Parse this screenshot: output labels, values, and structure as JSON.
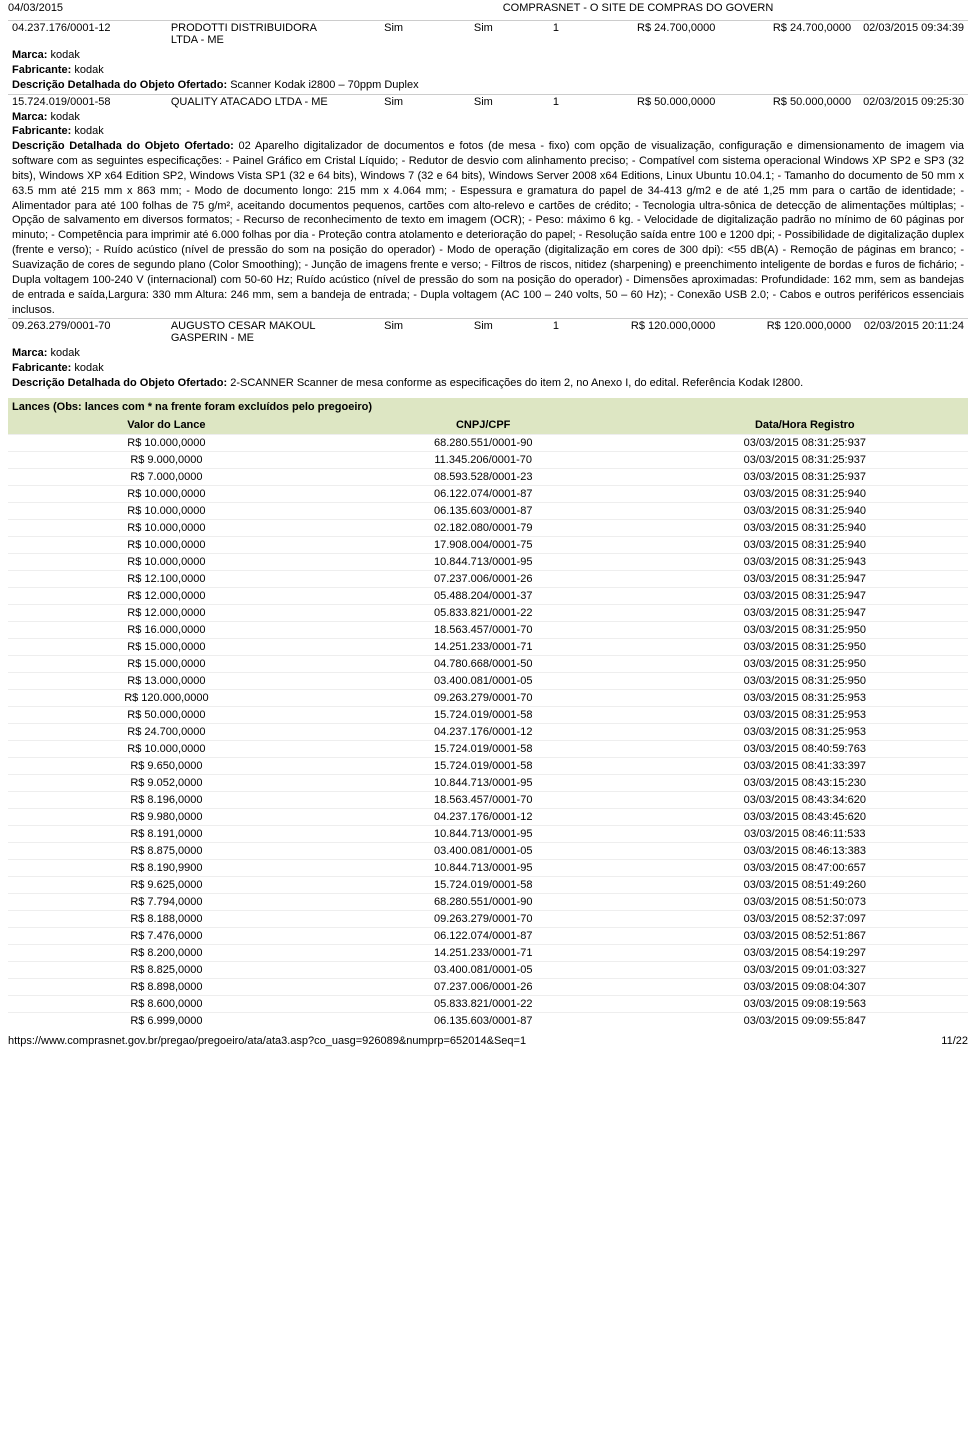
{
  "header": {
    "date": "04/03/2015",
    "title": "COMPRASNET - O SITE DE COMPRAS DO GOVERN"
  },
  "vendors": [
    {
      "cnpj": "04.237.176/0001-12",
      "nome": "PRODOTTI DISTRIBUIDORA LTDA - ME",
      "col1": "Sim",
      "col2": "Sim",
      "qtd": "1",
      "v1": "R$ 24.700,0000",
      "v2": "R$ 24.700,0000",
      "data": "02/03/2015 09:34:39",
      "marca_lbl": "Marca: ",
      "marca": "kodak",
      "fab_lbl": "Fabricante: ",
      "fab": "kodak",
      "desc_lbl": "Descrição Detalhada do Objeto Ofertado: ",
      "desc": "Scanner Kodak i2800 – 70ppm Duplex"
    },
    {
      "cnpj": "15.724.019/0001-58",
      "nome": "QUALITY ATACADO LTDA - ME",
      "col1": "Sim",
      "col2": "Sim",
      "qtd": "1",
      "v1": "R$ 50.000,0000",
      "v2": "R$ 50.000,0000",
      "data": "02/03/2015 09:25:30",
      "marca_lbl": "Marca: ",
      "marca": "kodak",
      "fab_lbl": "Fabricante: ",
      "fab": "kodak",
      "desc_lbl": "Descrição Detalhada do Objeto Ofertado: ",
      "desc": "02 Aparelho digitalizador de documentos e fotos (de mesa - fixo) com opção de visualização, configuração e dimensionamento de imagem via software com as seguintes especificações: - Painel Gráfico em Cristal Líquido; - Redutor de desvio com alinhamento preciso; - Compatível com sistema operacional Windows XP SP2 e SP3 (32 bits), Windows XP x64 Edition SP2, Windows Vista SP1 (32 e 64 bits), Windows 7 (32 e 64 bits), Windows Server 2008 x64 Editions, Linux Ubuntu 10.04.1; - Tamanho do documento de 50 mm x 63.5 mm até 215 mm x 863 mm; - Modo de documento longo: 215 mm x 4.064 mm; - Espessura e gramatura do papel de 34-413 g/m2 e de até 1,25 mm para o cartão de identidade; - Alimentador para até 100 folhas de 75 g/m², aceitando documentos pequenos, cartões com alto-relevo e cartões de crédito; - Tecnologia ultra-sônica de detecção de alimentações múltiplas; - Opção de salvamento em diversos formatos; - Recurso de reconhecimento de texto em imagem (OCR); - Peso: máximo 6 kg. - Velocidade de digitalização padrão no mínimo de 60 páginas por minuto; - Competência para imprimir até 6.000 folhas por dia - Proteção contra atolamento e deterioração do papel; - Resolução saída entre 100 e 1200 dpi; - Possibilidade de digitalização duplex (frente e verso); - Ruído acústico (nível de pressão do som na posição do operador) - Modo de operação (digitalização em cores de 300 dpi): <55 dB(A) - Remoção de páginas em branco; - Suavização de cores de segundo plano (Color Smoothing); - Junção de imagens frente e verso; - Filtros de riscos, nitidez (sharpening) e preenchimento inteligente de bordas e furos de fichário; - Dupla voltagem 100-240 V (internacional) com 50-60 Hz; Ruído acústico (nível de pressão do som na posição do operador) - Dimensões aproximadas: Profundidade: 162 mm, sem as bandejas de entrada e saída,Largura: 330 mm Altura: 246 mm, sem a bandeja de entrada; - Dupla voltagem (AC 100 – 240 volts, 50 – 60 Hz); - Conexão USB 2.0; - Cabos e outros periféricos essenciais inclusos."
    },
    {
      "cnpj": "09.263.279/0001-70",
      "nome": "AUGUSTO CESAR MAKOUL GASPERIN - ME",
      "col1": "Sim",
      "col2": "Sim",
      "qtd": "1",
      "v1": "R$ 120.000,0000",
      "v2": "R$ 120.000,0000",
      "data": "02/03/2015 20:11:24",
      "marca_lbl": "Marca: ",
      "marca": "kodak",
      "fab_lbl": "Fabricante: ",
      "fab": "kodak",
      "desc_lbl": "Descrição Detalhada do Objeto Ofertado: ",
      "desc": "2-SCANNER Scanner de mesa conforme as especificações do item 2, no Anexo I, do edital. Referência Kodak I2800."
    }
  ],
  "lances_header": {
    "title": "Lances ",
    "note": "(Obs: lances com * na frente foram excluídos pelo pregoeiro)",
    "col1": "Valor do Lance",
    "col2": "CNPJ/CPF",
    "col3": "Data/Hora Registro"
  },
  "lances": [
    {
      "valor": "R$ 10.000,0000",
      "cnpj": "68.280.551/0001-90",
      "data": "03/03/2015 08:31:25:937"
    },
    {
      "valor": "R$ 9.000,0000",
      "cnpj": "11.345.206/0001-70",
      "data": "03/03/2015 08:31:25:937"
    },
    {
      "valor": "R$ 7.000,0000",
      "cnpj": "08.593.528/0001-23",
      "data": "03/03/2015 08:31:25:937"
    },
    {
      "valor": "R$ 10.000,0000",
      "cnpj": "06.122.074/0001-87",
      "data": "03/03/2015 08:31:25:940"
    },
    {
      "valor": "R$ 10.000,0000",
      "cnpj": "06.135.603/0001-87",
      "data": "03/03/2015 08:31:25:940"
    },
    {
      "valor": "R$ 10.000,0000",
      "cnpj": "02.182.080/0001-79",
      "data": "03/03/2015 08:31:25:940"
    },
    {
      "valor": "R$ 10.000,0000",
      "cnpj": "17.908.004/0001-75",
      "data": "03/03/2015 08:31:25:940"
    },
    {
      "valor": "R$ 10.000,0000",
      "cnpj": "10.844.713/0001-95",
      "data": "03/03/2015 08:31:25:943"
    },
    {
      "valor": "R$ 12.100,0000",
      "cnpj": "07.237.006/0001-26",
      "data": "03/03/2015 08:31:25:947"
    },
    {
      "valor": "R$ 12.000,0000",
      "cnpj": "05.488.204/0001-37",
      "data": "03/03/2015 08:31:25:947"
    },
    {
      "valor": "R$ 12.000,0000",
      "cnpj": "05.833.821/0001-22",
      "data": "03/03/2015 08:31:25:947"
    },
    {
      "valor": "R$ 16.000,0000",
      "cnpj": "18.563.457/0001-70",
      "data": "03/03/2015 08:31:25:950"
    },
    {
      "valor": "R$ 15.000,0000",
      "cnpj": "14.251.233/0001-71",
      "data": "03/03/2015 08:31:25:950"
    },
    {
      "valor": "R$ 15.000,0000",
      "cnpj": "04.780.668/0001-50",
      "data": "03/03/2015 08:31:25:950"
    },
    {
      "valor": "R$ 13.000,0000",
      "cnpj": "03.400.081/0001-05",
      "data": "03/03/2015 08:31:25:950"
    },
    {
      "valor": "R$ 120.000,0000",
      "cnpj": "09.263.279/0001-70",
      "data": "03/03/2015 08:31:25:953"
    },
    {
      "valor": "R$ 50.000,0000",
      "cnpj": "15.724.019/0001-58",
      "data": "03/03/2015 08:31:25:953"
    },
    {
      "valor": "R$ 24.700,0000",
      "cnpj": "04.237.176/0001-12",
      "data": "03/03/2015 08:31:25:953"
    },
    {
      "valor": "R$ 10.000,0000",
      "cnpj": "15.724.019/0001-58",
      "data": "03/03/2015 08:40:59:763"
    },
    {
      "valor": "R$ 9.650,0000",
      "cnpj": "15.724.019/0001-58",
      "data": "03/03/2015 08:41:33:397"
    },
    {
      "valor": "R$ 9.052,0000",
      "cnpj": "10.844.713/0001-95",
      "data": "03/03/2015 08:43:15:230"
    },
    {
      "valor": "R$ 8.196,0000",
      "cnpj": "18.563.457/0001-70",
      "data": "03/03/2015 08:43:34:620"
    },
    {
      "valor": "R$ 9.980,0000",
      "cnpj": "04.237.176/0001-12",
      "data": "03/03/2015 08:43:45:620"
    },
    {
      "valor": "R$ 8.191,0000",
      "cnpj": "10.844.713/0001-95",
      "data": "03/03/2015 08:46:11:533"
    },
    {
      "valor": "R$ 8.875,0000",
      "cnpj": "03.400.081/0001-05",
      "data": "03/03/2015 08:46:13:383"
    },
    {
      "valor": "R$ 8.190,9900",
      "cnpj": "10.844.713/0001-95",
      "data": "03/03/2015 08:47:00:657"
    },
    {
      "valor": "R$ 9.625,0000",
      "cnpj": "15.724.019/0001-58",
      "data": "03/03/2015 08:51:49:260"
    },
    {
      "valor": "R$ 7.794,0000",
      "cnpj": "68.280.551/0001-90",
      "data": "03/03/2015 08:51:50:073"
    },
    {
      "valor": "R$ 8.188,0000",
      "cnpj": "09.263.279/0001-70",
      "data": "03/03/2015 08:52:37:097"
    },
    {
      "valor": "R$ 7.476,0000",
      "cnpj": "06.122.074/0001-87",
      "data": "03/03/2015 08:52:51:867"
    },
    {
      "valor": "R$ 8.200,0000",
      "cnpj": "14.251.233/0001-71",
      "data": "03/03/2015 08:54:19:297"
    },
    {
      "valor": "R$ 8.825,0000",
      "cnpj": "03.400.081/0001-05",
      "data": "03/03/2015 09:01:03:327"
    },
    {
      "valor": "R$ 8.898,0000",
      "cnpj": "07.237.006/0001-26",
      "data": "03/03/2015 09:08:04:307"
    },
    {
      "valor": "R$ 8.600,0000",
      "cnpj": "05.833.821/0001-22",
      "data": "03/03/2015 09:08:19:563"
    },
    {
      "valor": "R$ 6.999,0000",
      "cnpj": "06.135.603/0001-87",
      "data": "03/03/2015 09:09:55:847"
    }
  ],
  "footer": {
    "url": "https://www.comprasnet.gov.br/pregao/pregoeiro/ata/ata3.asp?co_uasg=926089&numprp=652014&Seq=1",
    "page": "11/22"
  }
}
